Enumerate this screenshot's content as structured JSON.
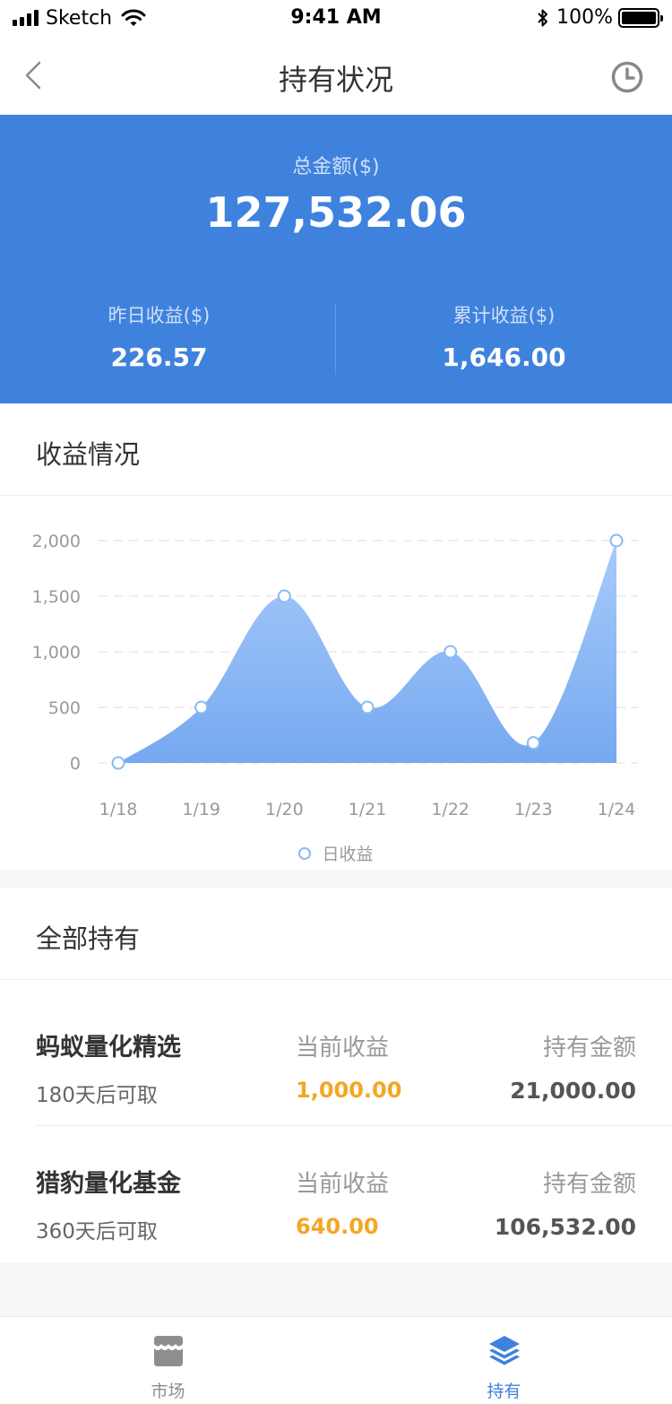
{
  "status_bar": {
    "carrier": "Sketch",
    "time": "9:41 AM",
    "battery": "100%"
  },
  "nav": {
    "title": "持有状况",
    "back_icon": "chevron-left-icon",
    "history_icon": "clock-icon"
  },
  "summary": {
    "total_label": "总金额($)",
    "total_value": "127,532.06",
    "yesterday_label": "昨日收益($)",
    "yesterday_value": "226.57",
    "cumulative_label": "累计收益($)",
    "cumulative_value": "1,646.00",
    "background_color": "#3f82dd"
  },
  "chart_section": {
    "title": "收益情况"
  },
  "chart_data": {
    "type": "area",
    "categories": [
      "1/18",
      "1/19",
      "1/20",
      "1/21",
      "1/22",
      "1/23",
      "1/24"
    ],
    "series": [
      {
        "name": "日收益",
        "values": [
          0,
          500,
          1500,
          500,
          1000,
          180,
          2000
        ],
        "color": "#7fb1f3"
      }
    ],
    "y_ticks": [
      "0",
      "500",
      "1,000",
      "1,500",
      "2,000"
    ],
    "ylim": [
      0,
      2000
    ],
    "grid": true,
    "legend_position": "bottom"
  },
  "holdings_section": {
    "title": "全部持有"
  },
  "funds": [
    {
      "name": "蚂蚁量化精选",
      "term": "180天后可取",
      "current_label": "当前收益",
      "current_value": "1,000.00",
      "amount_label": "持有金额",
      "amount_value": "21,000.00"
    },
    {
      "name": "猎豹量化基金",
      "term": "360天后可取",
      "current_label": "当前收益",
      "current_value": "640.00",
      "amount_label": "持有金额",
      "amount_value": "106,532.00"
    }
  ],
  "tab_bar": {
    "items": [
      {
        "label": "市场",
        "icon": "store-icon",
        "active": false
      },
      {
        "label": "持有",
        "icon": "layers-icon",
        "active": true
      }
    ],
    "active_color": "#3f82dd",
    "inactive_color": "#8e8e8e"
  }
}
